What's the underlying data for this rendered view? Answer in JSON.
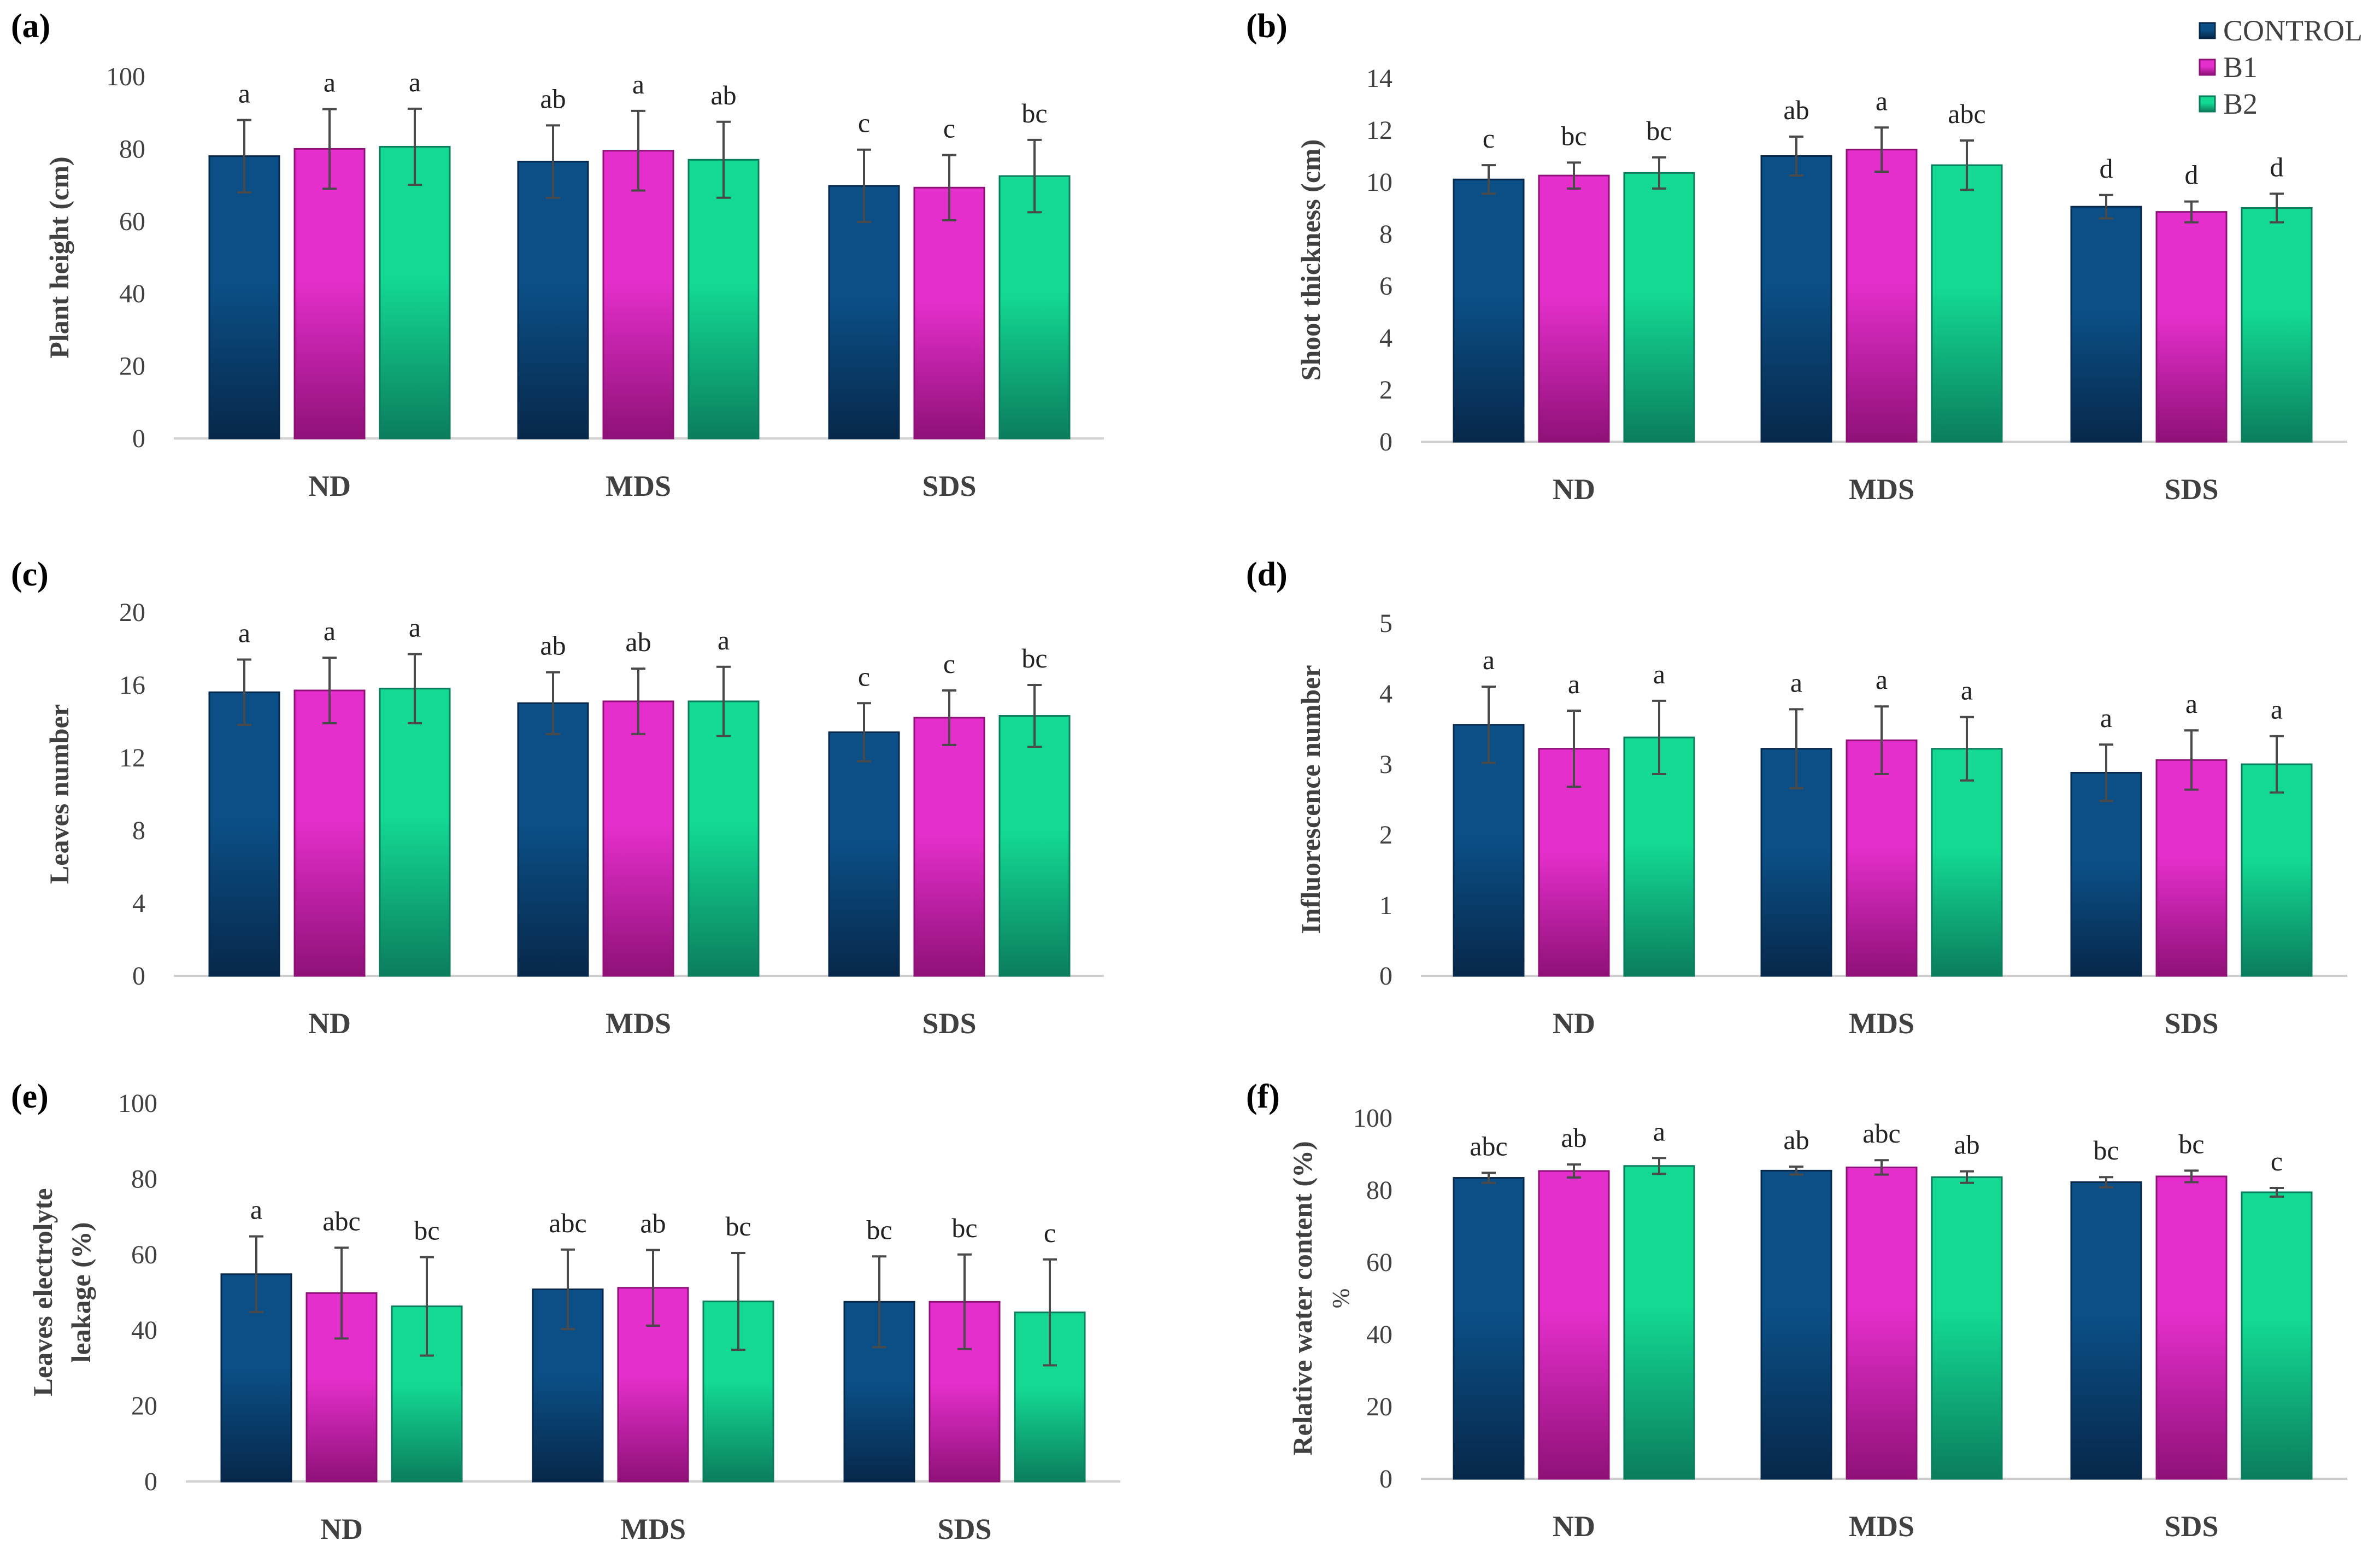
{
  "legend": {
    "items": [
      "CONTROL",
      "B1",
      "B2"
    ],
    "colors": [
      "#0b4f86",
      "#e52fcc",
      "#13d993"
    ],
    "dark_colors": [
      "#07284a",
      "#8f1178",
      "#0b7d5d"
    ]
  },
  "chart_data": [
    {
      "panel_label": "(a)",
      "type": "bar",
      "categories": [
        "ND",
        "MDS",
        "SDS"
      ],
      "ylabel": [
        "Plant height (cm)"
      ],
      "ylim": [
        0,
        100
      ],
      "yticks": [
        0,
        20,
        40,
        60,
        80,
        100
      ],
      "series": [
        {
          "name": "CONTROL",
          "values": [
            78,
            76.5,
            69.8
          ],
          "errors": [
            10,
            10,
            10
          ],
          "letters": [
            "a",
            "ab",
            "c"
          ]
        },
        {
          "name": "B1",
          "values": [
            80,
            79.5,
            69.3
          ],
          "errors": [
            11,
            11,
            9
          ],
          "letters": [
            "a",
            "a",
            "c"
          ]
        },
        {
          "name": "B2",
          "values": [
            80.6,
            77,
            72.5
          ],
          "errors": [
            10.5,
            10.5,
            10
          ],
          "letters": [
            "a",
            "ab",
            "bc"
          ]
        }
      ]
    },
    {
      "panel_label": "(b)",
      "type": "bar",
      "categories": [
        "ND",
        "MDS",
        "SDS"
      ],
      "ylabel": [
        "Shoot thickness (cm)"
      ],
      "ylim": [
        0,
        14
      ],
      "yticks": [
        0,
        2,
        4,
        6,
        8,
        10,
        12,
        14
      ],
      "series": [
        {
          "name": "CONTROL",
          "values": [
            10.1,
            11,
            9.05
          ],
          "errors": [
            0.55,
            0.75,
            0.45
          ],
          "letters": [
            "c",
            "ab",
            "d"
          ]
        },
        {
          "name": "B1",
          "values": [
            10.25,
            11.25,
            8.85
          ],
          "errors": [
            0.5,
            0.85,
            0.4
          ],
          "letters": [
            "bc",
            "a",
            "d"
          ]
        },
        {
          "name": "B2",
          "values": [
            10.35,
            10.65,
            9.0
          ],
          "errors": [
            0.6,
            0.95,
            0.55
          ],
          "letters": [
            "bc",
            "abc",
            "d"
          ]
        }
      ]
    },
    {
      "panel_label": "(c)",
      "type": "bar",
      "categories": [
        "ND",
        "MDS",
        "SDS"
      ],
      "ylabel": [
        "Leaves number"
      ],
      "ylim": [
        0,
        20
      ],
      "yticks": [
        0,
        4,
        8,
        12,
        16,
        20
      ],
      "series": [
        {
          "name": "CONTROL",
          "values": [
            15.6,
            15.0,
            13.4
          ],
          "errors": [
            1.8,
            1.7,
            1.6
          ],
          "letters": [
            "a",
            "ab",
            "c"
          ]
        },
        {
          "name": "B1",
          "values": [
            15.7,
            15.1,
            14.2
          ],
          "errors": [
            1.8,
            1.8,
            1.5
          ],
          "letters": [
            "a",
            "ab",
            "c"
          ]
        },
        {
          "name": "B2",
          "values": [
            15.8,
            15.1,
            14.3
          ],
          "errors": [
            1.9,
            1.9,
            1.7
          ],
          "letters": [
            "a",
            "a",
            "bc"
          ]
        }
      ]
    },
    {
      "panel_label": "(d)",
      "type": "bar",
      "categories": [
        "ND",
        "MDS",
        "SDS"
      ],
      "ylabel": [
        "Influorescence number"
      ],
      "ylim": [
        0,
        5
      ],
      "yticks": [
        0,
        1,
        2,
        3,
        4,
        5
      ],
      "series": [
        {
          "name": "CONTROL",
          "values": [
            3.56,
            3.22,
            2.88
          ],
          "errors": [
            0.54,
            0.56,
            0.4
          ],
          "letters": [
            "a",
            "a",
            "a"
          ]
        },
        {
          "name": "B1",
          "values": [
            3.22,
            3.34,
            3.06
          ],
          "errors": [
            0.54,
            0.48,
            0.42
          ],
          "letters": [
            "a",
            "a",
            "a"
          ]
        },
        {
          "name": "B2",
          "values": [
            3.38,
            3.22,
            3.0
          ],
          "errors": [
            0.52,
            0.45,
            0.4
          ],
          "letters": [
            "a",
            "a",
            "a"
          ]
        }
      ]
    },
    {
      "panel_label": "(e)",
      "type": "bar",
      "categories": [
        "ND",
        "MDS",
        "SDS"
      ],
      "ylabel": [
        "Leaves electrolyte",
        "leakage (%)"
      ],
      "ylim": [
        0,
        100
      ],
      "yticks": [
        0,
        20,
        40,
        60,
        80,
        100
      ],
      "series": [
        {
          "name": "CONTROL",
          "values": [
            54.8,
            50.8,
            47.5
          ],
          "errors": [
            10,
            10.5,
            12
          ],
          "letters": [
            "a",
            "abc",
            "bc"
          ]
        },
        {
          "name": "B1",
          "values": [
            49.8,
            51.2,
            47.5
          ],
          "errors": [
            12,
            10,
            12.5
          ],
          "letters": [
            "abc",
            "ab",
            "bc"
          ]
        },
        {
          "name": "B2",
          "values": [
            46.3,
            47.6,
            44.7
          ],
          "errors": [
            13,
            12.8,
            14
          ],
          "letters": [
            "bc",
            "bc",
            "c"
          ]
        }
      ]
    },
    {
      "panel_label": "(f)",
      "type": "bar",
      "categories": [
        "ND",
        "MDS",
        "SDS"
      ],
      "ylabel": [
        "Relative water content (%)",
        "%"
      ],
      "ylim": [
        0,
        100
      ],
      "yticks": [
        0,
        20,
        40,
        60,
        80,
        100
      ],
      "series": [
        {
          "name": "CONTROL",
          "values": [
            83.4,
            85.4,
            82.2
          ],
          "errors": [
            1.4,
            1.1,
            1.4
          ],
          "letters": [
            "abc",
            "ab",
            "bc"
          ]
        },
        {
          "name": "B1",
          "values": [
            85.3,
            86.3,
            83.8
          ],
          "errors": [
            1.8,
            2.0,
            1.6
          ],
          "letters": [
            "ab",
            "abc",
            "bc"
          ]
        },
        {
          "name": "B2",
          "values": [
            86.7,
            83.6,
            79.4
          ],
          "errors": [
            2.2,
            1.6,
            1.2
          ],
          "letters": [
            "a",
            "ab",
            "c"
          ]
        }
      ]
    }
  ]
}
